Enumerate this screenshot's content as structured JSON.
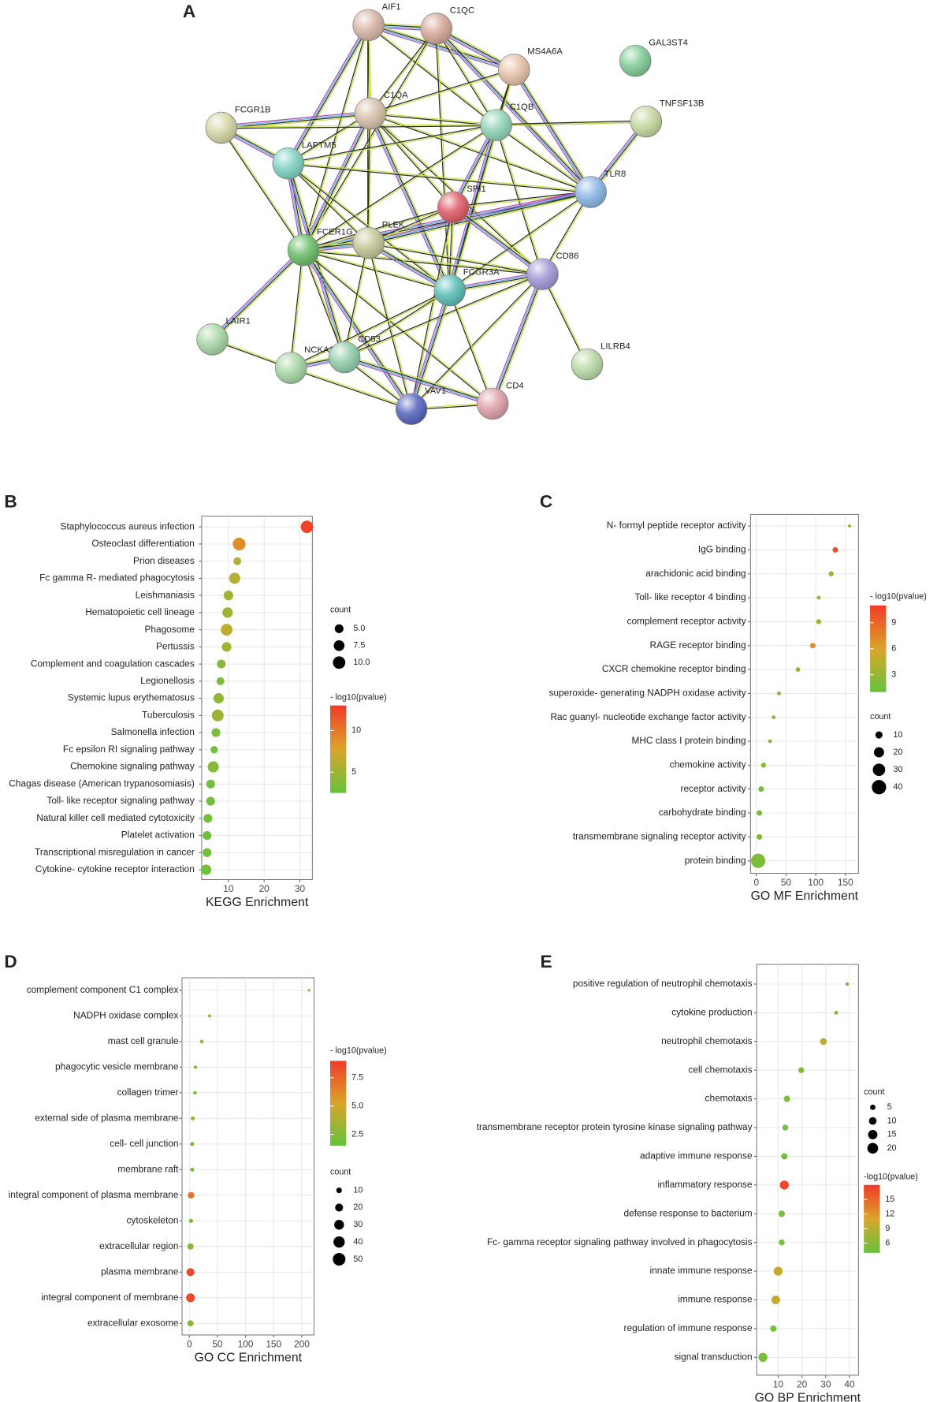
{
  "network": {
    "panel": "A",
    "nodes": [
      {
        "label": "AIF1",
        "color": "#d8b6a6"
      },
      {
        "label": "C1QC",
        "color": "#d6a898"
      },
      {
        "label": "MS4A6A",
        "color": "#e6c2a8"
      },
      {
        "label": "GAL3ST4",
        "color": "#80cc98"
      },
      {
        "label": "C1QA",
        "color": "#d6c0aa"
      },
      {
        "label": "C1QB",
        "color": "#90d4b8"
      },
      {
        "label": "TNFSF13B",
        "color": "#c6d89e"
      },
      {
        "label": "FCGR1B",
        "color": "#d6d6a6"
      },
      {
        "label": "LAPTM5",
        "color": "#80d2c2"
      },
      {
        "label": "TLR8",
        "color": "#88b6e6"
      },
      {
        "label": "SPI1",
        "color": "#de5a66"
      },
      {
        "label": "FCER1G",
        "color": "#6abe6a"
      },
      {
        "label": "PLEK",
        "color": "#c6c698"
      },
      {
        "label": "CD86",
        "color": "#a298d6"
      },
      {
        "label": "FCGR3A",
        "color": "#5abeb6"
      },
      {
        "label": "LAIR1",
        "color": "#a8d6a6"
      },
      {
        "label": "NCKA",
        "color": "#a6d6a4"
      },
      {
        "label": "CD53",
        "color": "#90ceaa"
      },
      {
        "label": "LILRB4",
        "color": "#b8daa6"
      },
      {
        "label": "VAV1",
        "color": "#5664be"
      },
      {
        "label": "CD4",
        "color": "#dea0a8"
      }
    ]
  },
  "chart_data": [
    {
      "type": "scatter",
      "panel": "B",
      "categories": [
        "Staphylococcus aureus infection",
        "Osteoclast differentiation",
        "Prion diseases",
        "Fc gamma R- mediated phagocytosis",
        "Leishmaniasis",
        "Hematopoietic cell lineage",
        "Phagosome",
        "Pertussis",
        "Complement and coagulation cascades",
        "Legionellosis",
        "Systemic lupus erythematosus",
        "Tuberculosis",
        "Salmonella infection",
        "Fc epsilon RI signaling pathway",
        "Chemokine signaling pathway",
        "Chagas disease (American trypanosomiasis)",
        "Toll- like receptor signaling pathway",
        "Natural killer cell mediated cytotoxicity",
        "Platelet activation",
        "Transcriptional misregulation in cancer",
        "Cytokine- cytokine receptor interaction"
      ],
      "values": [
        32,
        13,
        12.5,
        11.75,
        10,
        9.75,
        9.5,
        9.5,
        8,
        7.75,
        7.25,
        7,
        6.5,
        6,
        5.75,
        5,
        5,
        4.25,
        4,
        4,
        3.75
      ],
      "sizes": [
        10,
        10.5,
        4,
        8,
        6,
        7,
        9,
        6,
        5,
        4,
        7,
        9,
        5,
        3.5,
        8,
        5,
        5,
        5,
        5,
        5,
        7
      ],
      "color_values": [
        12.5,
        9,
        6,
        6,
        5,
        5,
        6.5,
        5,
        4,
        3.5,
        4.5,
        5,
        3.5,
        3,
        4,
        3,
        3,
        3,
        3,
        3,
        3
      ],
      "xlabel": "KEGG Enrichment",
      "xlim": [
        2.5,
        33.5
      ],
      "xticks": [
        10,
        20,
        30
      ],
      "grid": true,
      "size_legend": {
        "title": "count",
        "ticks": [
          {
            "value": 5,
            "label": "5.0"
          },
          7.5,
          {
            "value": 10,
            "label": "10.0"
          }
        ]
      },
      "color_legend": {
        "title": "- log10(pvalue)",
        "lim": [
          2.5,
          13
        ],
        "ticks": [
          5,
          10
        ],
        "colors": [
          "#66c23e",
          "#d9a52a",
          "#f23a2a"
        ]
      }
    },
    {
      "type": "scatter",
      "panel": "C",
      "categories": [
        "N- formyl peptide receptor activity",
        "IgG binding",
        "arachidonic acid binding",
        "Toll- like receptor 4 binding",
        "complement receptor activity",
        "RAGE receptor binding",
        "CXCR chemokine receptor binding",
        "superoxide- generating NADPH oxidase activity",
        "Rac guanyl- nucleotide exchange factor activity",
        "MHC class I protein binding",
        "chemokine activity",
        "receptor activity",
        "carbohydrate binding",
        "transmembrane signaling receptor activity",
        "protein binding"
      ],
      "values": [
        157,
        133,
        126,
        105,
        105,
        95,
        70,
        38,
        29,
        23,
        12,
        8,
        5,
        5,
        3
      ],
      "sizes": [
        2,
        6,
        5,
        3,
        5,
        6,
        4,
        3,
        3,
        3,
        5,
        6,
        6,
        6,
        40
      ],
      "color_values": [
        3,
        10,
        3.5,
        3,
        3.5,
        7,
        3,
        2.5,
        2.5,
        2.5,
        2.5,
        2,
        2,
        2,
        2
      ],
      "xlabel": "GO MF  Enrichment",
      "xlim": [
        -10,
        172
      ],
      "xticks": [
        0,
        50,
        100,
        150
      ],
      "grid": true,
      "size_legend": {
        "title": "count",
        "ticks": [
          10,
          20,
          30,
          40
        ]
      },
      "color_legend": {
        "title": "- log10(pvalue)",
        "lim": [
          1,
          11
        ],
        "ticks": [
          3,
          6,
          9
        ],
        "colors": [
          "#66c23e",
          "#d9a52a",
          "#f23a2a"
        ]
      }
    },
    {
      "type": "scatter",
      "panel": "D",
      "categories": [
        "complement component C1 complex",
        "NADPH oxidase complex",
        "mast cell granule",
        "phagocytic vesicle membrane",
        "collagen trimer",
        "external side of plasma membrane",
        "cell- cell junction",
        "membrane raft",
        "integral component of plasma membrane",
        "cytoskeleton",
        "extracellular region",
        "plasma membrane",
        "integral component of membrane",
        "extracellular exosome"
      ],
      "values": [
        213,
        36,
        22,
        11,
        10,
        6,
        5,
        5,
        3,
        3,
        2,
        2,
        2,
        2
      ],
      "sizes": [
        2,
        3,
        4,
        4,
        4,
        5,
        5,
        5,
        14,
        5,
        12,
        20,
        24,
        12
      ],
      "color_values": [
        3,
        3,
        2.5,
        2.5,
        2.5,
        2.5,
        2,
        2,
        7,
        2,
        2.5,
        8.5,
        8.5,
        2.5
      ],
      "xlabel": "GO CC Enrichment",
      "xlim": [
        -13,
        222
      ],
      "xticks": [
        0,
        50,
        100,
        150,
        200
      ],
      "grid": true,
      "size_legend": {
        "title": "count",
        "ticks": [
          10,
          20,
          30,
          40,
          50
        ]
      },
      "color_legend": {
        "title": "- log10(pvalue)",
        "lim": [
          1.5,
          9
        ],
        "ticks": [
          2.5,
          {
            "value": 5,
            "label": "5.0"
          },
          7.5
        ],
        "colors": [
          "#66c23e",
          "#d9a52a",
          "#f23a2a"
        ]
      }
    },
    {
      "type": "scatter",
      "panel": "E",
      "categories": [
        "positive regulation of neutrophil chemotaxis",
        "cytokine production",
        "neutrophil chemotaxis",
        "cell chemotaxis",
        "chemotaxis",
        "transmembrane receptor protein tyrosine kinase signaling pathway",
        "adaptive immune response",
        "inflammatory response",
        "defense response to bacterium",
        "Fc- gamma receptor signaling pathway involved in phagocytosis",
        "innate immune response",
        "immune response",
        "regulation of immune response",
        "signal transduction"
      ],
      "values": [
        39,
        34.4,
        29,
        19.7,
        13.7,
        13,
        12.6,
        12.6,
        11.5,
        11.5,
        10,
        9,
        8,
        3.6
      ],
      "sizes": [
        2,
        2.5,
        8,
        6,
        7,
        6,
        7,
        14,
        7,
        6,
        14,
        13,
        7,
        14
      ],
      "color_values": [
        5,
        5,
        9,
        6,
        5,
        5,
        5,
        17,
        5,
        5,
        10,
        10,
        5,
        5
      ],
      "xlabel": "GO BP Enrichment",
      "xlim": [
        1,
        43.75
      ],
      "xticks": [
        10,
        20,
        30,
        40
      ],
      "grid": true,
      "size_legend": {
        "title": "count",
        "ticks": [
          5,
          10,
          15,
          20
        ]
      },
      "color_legend": {
        "title": "-log10(pvalue)",
        "lim": [
          4,
          18
        ],
        "ticks": [
          6,
          9,
          12,
          15
        ],
        "colors": [
          "#66c23e",
          "#d9a52a",
          "#f23a2a"
        ]
      }
    }
  ]
}
